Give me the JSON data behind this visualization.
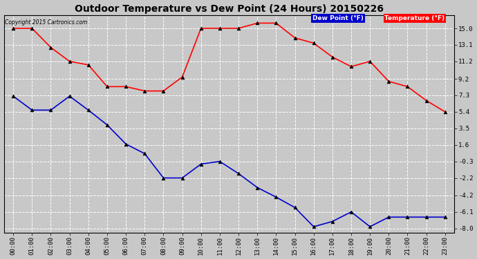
{
  "title": "Outdoor Temperature vs Dew Point (24 Hours) 20150226",
  "copyright": "Copyright 2015 Cartronics.com",
  "legend_dew": "Dew Point (°F)",
  "legend_temp": "Temperature (°F)",
  "hours": [
    "00:00",
    "01:00",
    "02:00",
    "03:00",
    "04:00",
    "05:00",
    "06:00",
    "07:00",
    "08:00",
    "09:00",
    "10:00",
    "11:00",
    "12:00",
    "13:00",
    "14:00",
    "15:00",
    "16:00",
    "17:00",
    "18:00",
    "19:00",
    "20:00",
    "21:00",
    "22:00",
    "23:00"
  ],
  "temperature": [
    15.0,
    15.0,
    12.8,
    11.2,
    10.8,
    8.3,
    8.3,
    7.8,
    7.8,
    9.4,
    15.0,
    15.0,
    15.0,
    15.6,
    15.6,
    13.9,
    13.3,
    11.7,
    10.6,
    11.2,
    8.9,
    8.3,
    6.7,
    5.4
  ],
  "dew_point": [
    7.2,
    5.6,
    5.6,
    7.2,
    5.6,
    3.9,
    1.7,
    0.6,
    -2.2,
    -2.2,
    -0.6,
    -0.3,
    -1.7,
    -3.3,
    -4.4,
    -5.6,
    -7.8,
    -7.2,
    -6.1,
    -7.8,
    -6.7,
    -6.7,
    -6.7,
    -6.7
  ],
  "ylim": [
    -8.5,
    16.5
  ],
  "yticks": [
    -8.0,
    -6.1,
    -4.2,
    -2.2,
    -0.3,
    1.6,
    3.5,
    5.4,
    7.3,
    9.2,
    11.2,
    13.1,
    15.0
  ],
  "bg_color": "#c8c8c8",
  "plot_bg_color": "#c8c8c8",
  "temp_color": "#ff0000",
  "dew_color": "#0000cc",
  "grid_color": "#ffffff",
  "title_color": "#000000",
  "legend_dew_bg": "#0000cc",
  "legend_temp_bg": "#ff0000"
}
